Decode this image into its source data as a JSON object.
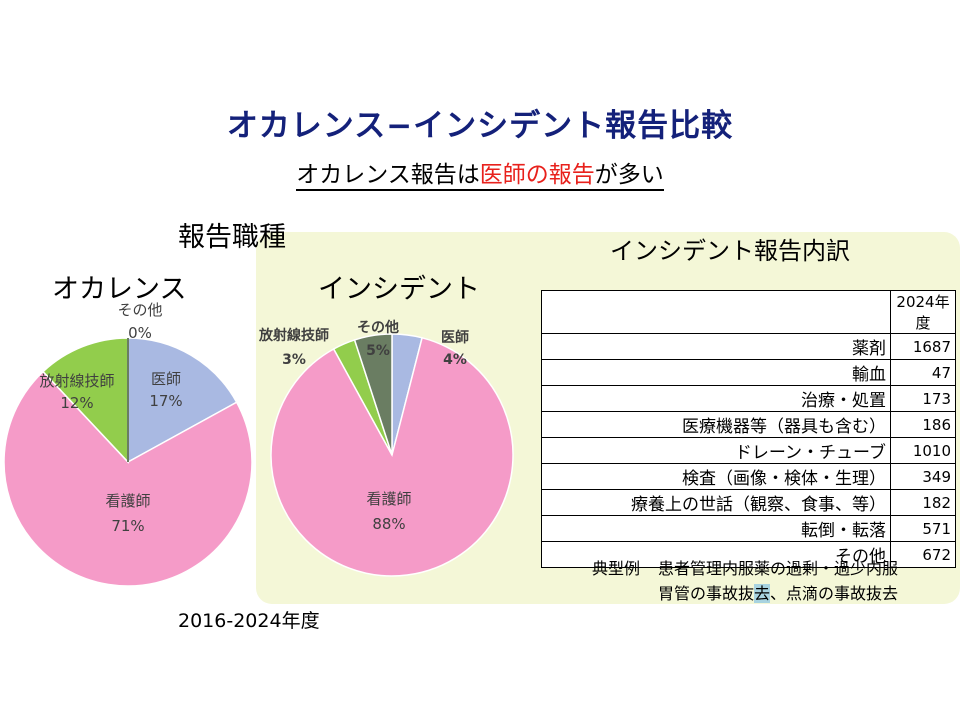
{
  "title": "オカレンス−インシデント報告比較",
  "subtitle": {
    "prefix": "オカレンス報告は",
    "highlight": "医師の報告",
    "suffix": "が多い"
  },
  "job_heading": "報告職種",
  "period": "2016-2024年度",
  "chart_data": [
    {
      "type": "pie",
      "title": "オカレンス",
      "slices": [
        {
          "label": "医師",
          "value": 17,
          "display": "17%",
          "color": "#a9b9e2"
        },
        {
          "label": "看護師",
          "value": 71,
          "display": "71%",
          "color": "#f59bc8"
        },
        {
          "label": "放射線技師",
          "value": 12,
          "display": "12%",
          "color": "#92cd4c"
        },
        {
          "label": "その他",
          "value": 0,
          "display": "0%",
          "color": "#6a7d62"
        }
      ]
    },
    {
      "type": "pie",
      "title": "インシデント",
      "slices": [
        {
          "label": "医師",
          "value": 4,
          "display": "4%",
          "color": "#a9b9e2"
        },
        {
          "label": "看護師",
          "value": 88,
          "display": "88%",
          "color": "#f59bc8"
        },
        {
          "label": "放射線技師",
          "value": 3,
          "display": "3%",
          "color": "#92cd4c"
        },
        {
          "label": "その他",
          "value": 5,
          "display": "5%",
          "color": "#6a7d62"
        }
      ]
    },
    {
      "type": "table",
      "title": "インシデント報告内訳",
      "column_header": "2024年度",
      "rows": [
        {
          "category": "薬剤",
          "value": 1687
        },
        {
          "category": "輸血",
          "value": 47
        },
        {
          "category": "治療・処置",
          "value": 173
        },
        {
          "category": "医療機器等（器具も含む）",
          "value": 186
        },
        {
          "category": "ドレーン・チューブ",
          "value": 1010
        },
        {
          "category": "検査（画像・検体・生理）",
          "value": 349
        },
        {
          "category": "療養上の世話（観察、食事、等）",
          "value": 182
        },
        {
          "category": "転倒・転落",
          "value": 571
        },
        {
          "category": "その他",
          "value": 672
        }
      ]
    }
  ],
  "examples": {
    "label": "典型例",
    "line1": "患者管理内服薬の過剰・過少内服",
    "line2_a": "胃管の事故抜",
    "line2_mark": "去",
    "line2_b": "、点滴の事故抜去"
  }
}
